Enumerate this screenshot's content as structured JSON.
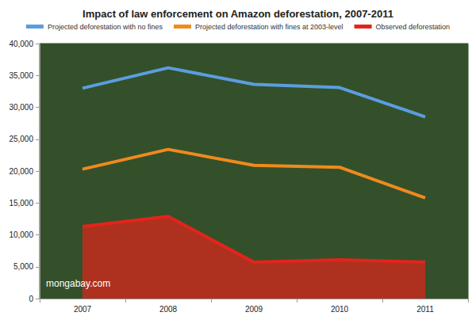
{
  "chart_data": {
    "type": "line",
    "title": "Impact of law enforcement on Amazon deforestation, 2007-2011",
    "categories": [
      "2007",
      "2008",
      "2009",
      "2010",
      "2011"
    ],
    "series": [
      {
        "name": "Projected deforestation with no fines",
        "color": "#5b9de0",
        "values": [
          33000,
          36200,
          33600,
          33100,
          28500
        ]
      },
      {
        "name": "Projected deforestation with fines at 2003-level",
        "color": "#ef8a1d",
        "values": [
          20300,
          23400,
          20900,
          20600,
          15800
        ]
      },
      {
        "name": "Observed deforestation",
        "color": "#e3241b",
        "type": "area",
        "values": [
          11300,
          12900,
          5700,
          6100,
          5700
        ]
      }
    ],
    "ylim": [
      0,
      40000
    ],
    "yticks": [
      0,
      {
        "value": 5000,
        "label": "5,000"
      },
      {
        "value": 10000,
        "label": "10,000"
      },
      {
        "value": 15000,
        "label": "15,000"
      },
      {
        "value": 20000,
        "label": "20,000"
      },
      {
        "value": 25000,
        "label": "25,000"
      },
      {
        "value": 30000,
        "label": "30,000"
      },
      {
        "value": 35000,
        "label": "35,000"
      },
      {
        "value": 40000,
        "label": "40,000"
      }
    ],
    "grid": false,
    "legend": "top",
    "annotations": [
      "mongabay.com"
    ]
  }
}
